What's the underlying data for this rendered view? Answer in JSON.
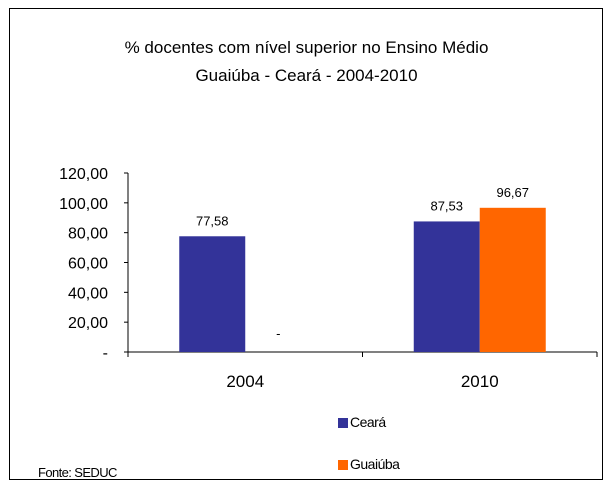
{
  "chart_data": {
    "type": "bar",
    "title": "% docentes com nível  superior no Ensino Médio",
    "subtitle": "Guaiúba - Ceará - 2004-2010",
    "categories": [
      "2004",
      "2010"
    ],
    "series": [
      {
        "name": "Ceará",
        "values": [
          77.58,
          87.53
        ],
        "labels": [
          "77,58",
          "87,53"
        ],
        "color": "#333399"
      },
      {
        "name": "Guaiúba",
        "values": [
          null,
          96.67
        ],
        "labels": [
          "-",
          "96,67"
        ],
        "color": "#ff6600"
      }
    ],
    "ylim": [
      0,
      120
    ],
    "yticks": [
      0,
      20,
      40,
      60,
      80,
      100,
      120
    ],
    "ytick_labels": [
      "-",
      "20,00",
      "40,00",
      "60,00",
      "80,00",
      "100,00",
      "120,00"
    ],
    "grid": false,
    "legend_position": "bottom"
  },
  "source": "Fonte: SEDUC"
}
